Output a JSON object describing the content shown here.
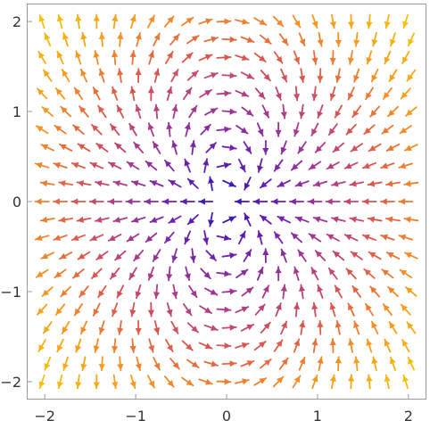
{
  "chart_data": {
    "type": "stream-density",
    "title": "",
    "xlabel": "",
    "ylabel": "",
    "xlim": [
      -2.1,
      2.1
    ],
    "ylim": [
      -2.1,
      2.1
    ],
    "x_ticks": [
      -2,
      -1,
      0,
      1,
      2
    ],
    "y_ticks": [
      -2,
      -1,
      0,
      1,
      2
    ],
    "x_tick_labels": [
      "−2",
      "−1",
      "0",
      "1",
      "2"
    ],
    "y_tick_labels": [
      "−2",
      "−1",
      "0",
      "1",
      "2"
    ],
    "field": "dipole",
    "field_description": "arrows follow dipole field lines; lobes above and below the origin, flow leftward along the x-axis",
    "arrow_grid_step": 0.2,
    "colormap": [
      "#2a14b4",
      "#6a1fb0",
      "#a83a8c",
      "#dd5a4a",
      "#f79a1e",
      "#f4c20a"
    ],
    "color_by": "distance from origin",
    "grid": false,
    "legend": "none"
  }
}
